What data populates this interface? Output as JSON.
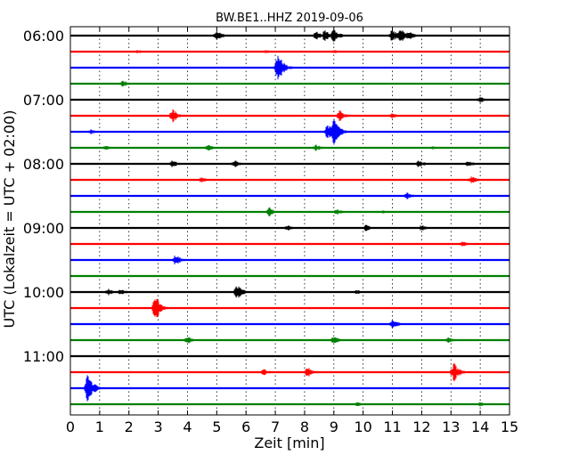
{
  "chart_data": {
    "type": "line",
    "title": "BW.BE1..HHZ 2019-09-06",
    "xlabel": "Zeit  [min]",
    "ylabel": "UTC (Lokalzeit = UTC + 02:00)",
    "xlim": [
      0,
      15
    ],
    "x_ticks": [
      0,
      1,
      2,
      3,
      4,
      5,
      6,
      7,
      8,
      9,
      10,
      11,
      12,
      13,
      14,
      15
    ],
    "y_tick_labels": [
      "06:00",
      "07:00",
      "08:00",
      "09:00",
      "10:00",
      "11:00"
    ],
    "y_tick_trace_index": [
      0,
      4,
      8,
      12,
      16,
      20
    ],
    "trace_interval_minutes": 15,
    "grid": "vertical dotted",
    "trace_colors": [
      "#000000",
      "#ff0000",
      "#0000ff",
      "#008000"
    ],
    "traces": [
      {
        "start": "06:00",
        "color": "#000000",
        "events": [
          [
            5.0,
            0.9
          ],
          [
            8.4,
            0.7
          ],
          [
            8.7,
            1.0
          ],
          [
            9.0,
            1.1
          ],
          [
            11.0,
            1.0
          ],
          [
            11.3,
            1.2
          ],
          [
            11.6,
            0.7
          ]
        ]
      },
      {
        "start": "06:15",
        "color": "#ff0000",
        "events": [
          [
            2.3,
            0.3
          ],
          [
            6.7,
            0.3
          ],
          [
            9.0,
            0.3
          ]
        ]
      },
      {
        "start": "06:30",
        "color": "#0000ff",
        "events": [
          [
            7.1,
            2.1
          ]
        ]
      },
      {
        "start": "06:45",
        "color": "#008000",
        "events": [
          [
            1.8,
            0.5
          ]
        ]
      },
      {
        "start": "07:00",
        "color": "#000000",
        "events": [
          [
            14.0,
            0.5
          ]
        ]
      },
      {
        "start": "07:15",
        "color": "#ff0000",
        "events": [
          [
            3.5,
            1.0
          ],
          [
            9.2,
            0.9
          ],
          [
            11.0,
            0.4
          ]
        ]
      },
      {
        "start": "07:30",
        "color": "#0000ff",
        "events": [
          [
            0.7,
            0.4
          ],
          [
            8.8,
            1.2
          ],
          [
            9.0,
            2.0
          ]
        ]
      },
      {
        "start": "07:45",
        "color": "#008000",
        "events": [
          [
            1.2,
            0.4
          ],
          [
            4.7,
            0.5
          ],
          [
            8.4,
            0.5
          ],
          [
            12.4,
            0.3
          ]
        ]
      },
      {
        "start": "08:00",
        "color": "#000000",
        "events": [
          [
            3.5,
            0.6
          ],
          [
            5.6,
            0.6
          ],
          [
            11.9,
            0.6
          ],
          [
            13.6,
            0.5
          ]
        ]
      },
      {
        "start": "08:15",
        "color": "#ff0000",
        "events": [
          [
            4.5,
            0.5
          ],
          [
            13.7,
            0.6
          ]
        ]
      },
      {
        "start": "08:30",
        "color": "#0000ff",
        "events": [
          [
            11.5,
            0.5
          ]
        ]
      },
      {
        "start": "08:45",
        "color": "#008000",
        "events": [
          [
            6.8,
            0.7
          ],
          [
            9.1,
            0.5
          ],
          [
            10.7,
            0.3
          ]
        ]
      },
      {
        "start": "09:00",
        "color": "#000000",
        "events": [
          [
            7.4,
            0.5
          ],
          [
            10.1,
            0.5
          ],
          [
            12.0,
            0.5
          ]
        ]
      },
      {
        "start": "09:15",
        "color": "#ff0000",
        "events": [
          [
            13.4,
            0.4
          ]
        ]
      },
      {
        "start": "09:30",
        "color": "#0000ff",
        "events": [
          [
            3.6,
            0.9
          ]
        ]
      },
      {
        "start": "09:45",
        "color": "#008000",
        "events": []
      },
      {
        "start": "10:00",
        "color": "#000000",
        "events": [
          [
            1.3,
            0.5
          ],
          [
            1.7,
            0.5
          ],
          [
            5.7,
            1.1
          ],
          [
            9.8,
            0.4
          ]
        ]
      },
      {
        "start": "10:15",
        "color": "#ff0000",
        "events": [
          [
            2.9,
            1.9
          ]
        ]
      },
      {
        "start": "10:30",
        "color": "#0000ff",
        "events": [
          [
            11.0,
            0.8
          ]
        ]
      },
      {
        "start": "10:45",
        "color": "#008000",
        "events": [
          [
            4.0,
            0.6
          ],
          [
            9.0,
            0.6
          ],
          [
            12.9,
            0.5
          ]
        ]
      },
      {
        "start": "11:00",
        "color": "#000000",
        "events": []
      },
      {
        "start": "11:15",
        "color": "#ff0000",
        "events": [
          [
            6.6,
            0.6
          ],
          [
            8.1,
            0.9
          ],
          [
            13.1,
            1.4
          ]
        ]
      },
      {
        "start": "11:30",
        "color": "#0000ff",
        "events": [
          [
            0.6,
            2.2
          ]
        ]
      },
      {
        "start": "11:45",
        "color": "#008000",
        "events": [
          [
            9.8,
            0.4
          ],
          [
            14.0,
            0.3
          ]
        ]
      }
    ]
  }
}
